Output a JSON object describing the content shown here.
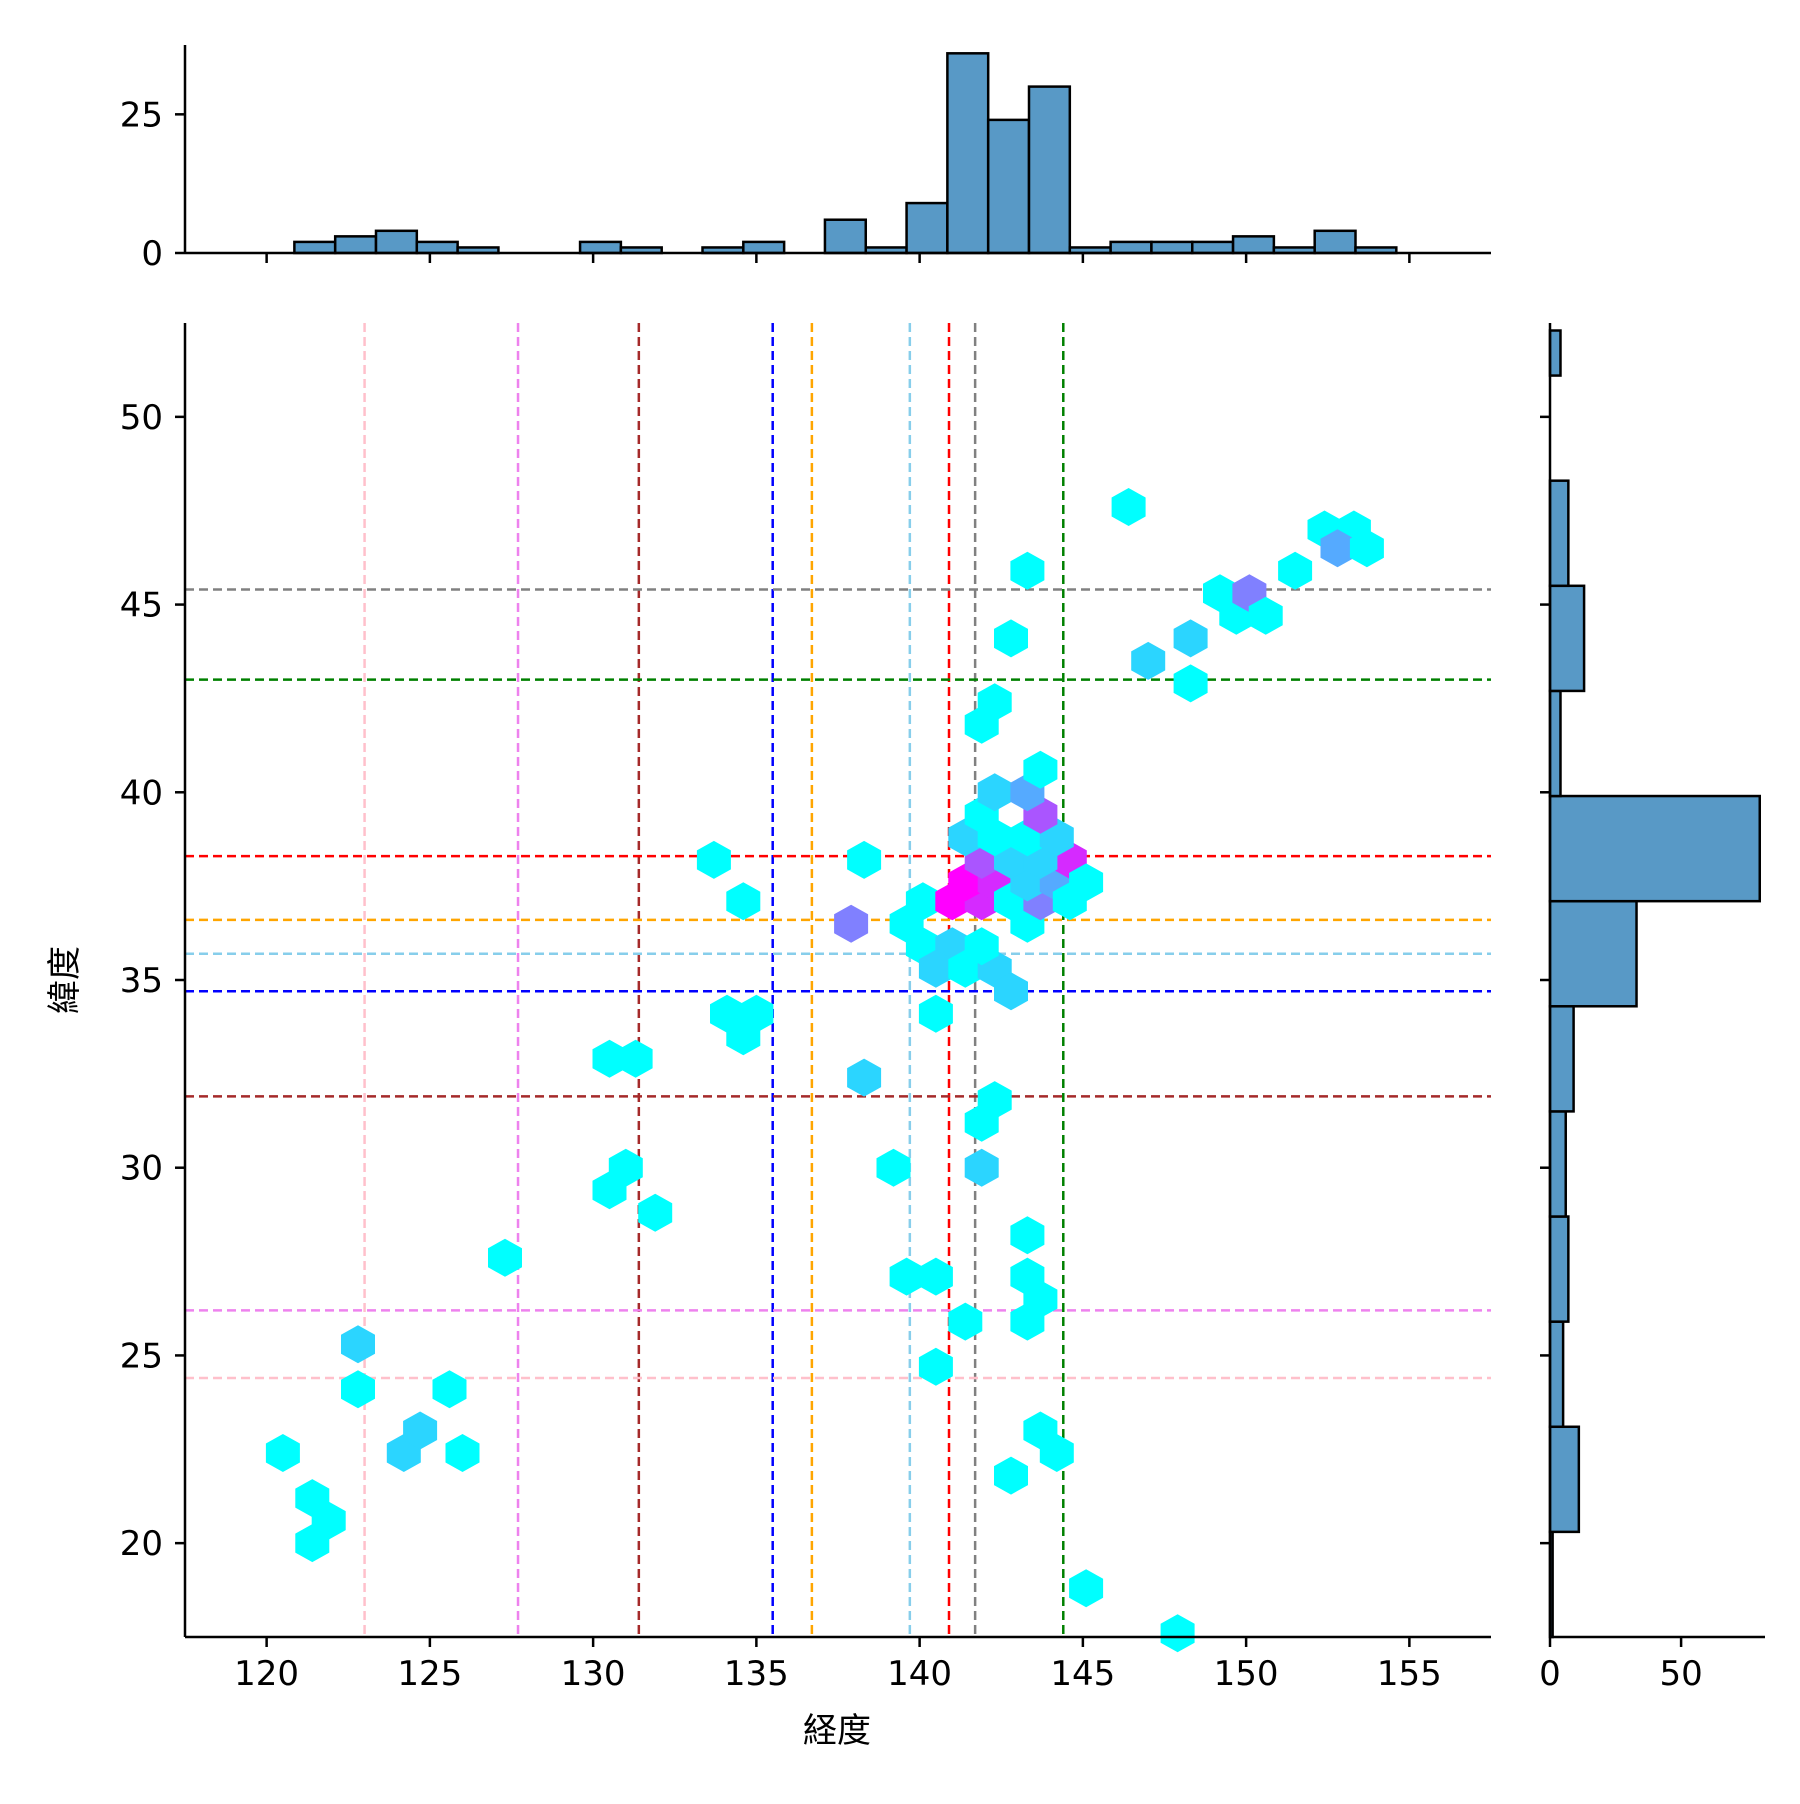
{
  "chart_data": {
    "type": "hexbin_joint",
    "xlabel": "経度",
    "ylabel": "緯度",
    "xlim": [
      117.5,
      157.5
    ],
    "ylim": [
      17.5,
      52.5
    ],
    "x_ticks": [
      120,
      125,
      130,
      135,
      140,
      145,
      150,
      155
    ],
    "y_ticks": [
      20,
      25,
      30,
      35,
      40,
      45,
      50
    ],
    "x_tick_labels": [
      "120",
      "125",
      "130",
      "135",
      "140",
      "145",
      "150",
      "155"
    ],
    "y_tick_labels": [
      "20",
      "25",
      "30",
      "35",
      "40",
      "45",
      "50"
    ],
    "colormap": {
      "low": "#00ffff",
      "mid": "#4aaefc",
      "high": "#ff00ff"
    },
    "hexbins": [
      {
        "x": 120.5,
        "y": 22.4,
        "count": 1
      },
      {
        "x": 121.4,
        "y": 21.2,
        "count": 1
      },
      {
        "x": 121.9,
        "y": 20.6,
        "count": 1
      },
      {
        "x": 121.4,
        "y": 20.0,
        "count": 1
      },
      {
        "x": 122.8,
        "y": 25.3,
        "count": 2
      },
      {
        "x": 122.8,
        "y": 24.1,
        "count": 1
      },
      {
        "x": 124.2,
        "y": 22.4,
        "count": 2
      },
      {
        "x": 124.7,
        "y": 23.0,
        "count": 2
      },
      {
        "x": 125.6,
        "y": 24.1,
        "count": 1
      },
      {
        "x": 126.0,
        "y": 22.4,
        "count": 1
      },
      {
        "x": 127.3,
        "y": 27.6,
        "count": 1
      },
      {
        "x": 130.5,
        "y": 32.9,
        "count": 1
      },
      {
        "x": 131.3,
        "y": 32.9,
        "count": 1
      },
      {
        "x": 130.5,
        "y": 29.4,
        "count": 1
      },
      {
        "x": 131.0,
        "y": 30.0,
        "count": 1
      },
      {
        "x": 131.9,
        "y": 28.8,
        "count": 1
      },
      {
        "x": 133.7,
        "y": 38.2,
        "count": 1
      },
      {
        "x": 134.6,
        "y": 37.1,
        "count": 1
      },
      {
        "x": 134.1,
        "y": 34.1,
        "count": 1
      },
      {
        "x": 135.0,
        "y": 34.1,
        "count": 1
      },
      {
        "x": 134.6,
        "y": 33.5,
        "count": 1
      },
      {
        "x": 138.3,
        "y": 38.2,
        "count": 1
      },
      {
        "x": 137.9,
        "y": 36.5,
        "count": 4
      },
      {
        "x": 138.3,
        "y": 32.4,
        "count": 2
      },
      {
        "x": 139.2,
        "y": 30.0,
        "count": 1
      },
      {
        "x": 139.6,
        "y": 27.1,
        "count": 1
      },
      {
        "x": 140.5,
        "y": 27.1,
        "count": 1
      },
      {
        "x": 140.5,
        "y": 24.7,
        "count": 1
      },
      {
        "x": 141.4,
        "y": 25.9,
        "count": 1
      },
      {
        "x": 140.5,
        "y": 34.1,
        "count": 1
      },
      {
        "x": 139.6,
        "y": 36.5,
        "count": 1
      },
      {
        "x": 140.1,
        "y": 37.1,
        "count": 1
      },
      {
        "x": 140.1,
        "y": 35.9,
        "count": 1
      },
      {
        "x": 141.0,
        "y": 35.9,
        "count": 2
      },
      {
        "x": 140.5,
        "y": 35.3,
        "count": 2
      },
      {
        "x": 141.4,
        "y": 35.3,
        "count": 1
      },
      {
        "x": 142.3,
        "y": 35.3,
        "count": 2
      },
      {
        "x": 142.8,
        "y": 34.7,
        "count": 2
      },
      {
        "x": 141.9,
        "y": 35.9,
        "count": 1
      },
      {
        "x": 141.0,
        "y": 37.1,
        "count": 7
      },
      {
        "x": 141.9,
        "y": 37.1,
        "count": 6
      },
      {
        "x": 141.4,
        "y": 37.6,
        "count": 7
      },
      {
        "x": 142.3,
        "y": 37.6,
        "count": 6
      },
      {
        "x": 141.9,
        "y": 38.2,
        "count": 5
      },
      {
        "x": 142.8,
        "y": 37.1,
        "count": 1
      },
      {
        "x": 143.3,
        "y": 36.5,
        "count": 1
      },
      {
        "x": 143.7,
        "y": 37.1,
        "count": 4
      },
      {
        "x": 143.3,
        "y": 37.6,
        "count": 2
      },
      {
        "x": 144.2,
        "y": 37.6,
        "count": 3
      },
      {
        "x": 144.6,
        "y": 38.2,
        "count": 6
      },
      {
        "x": 144.6,
        "y": 37.1,
        "count": 1
      },
      {
        "x": 145.1,
        "y": 37.6,
        "count": 1
      },
      {
        "x": 142.8,
        "y": 38.2,
        "count": 2
      },
      {
        "x": 143.7,
        "y": 38.2,
        "count": 2
      },
      {
        "x": 141.4,
        "y": 38.8,
        "count": 2
      },
      {
        "x": 142.3,
        "y": 38.8,
        "count": 1
      },
      {
        "x": 143.3,
        "y": 38.8,
        "count": 1
      },
      {
        "x": 144.2,
        "y": 38.8,
        "count": 2
      },
      {
        "x": 141.9,
        "y": 39.4,
        "count": 1
      },
      {
        "x": 143.7,
        "y": 39.4,
        "count": 5
      },
      {
        "x": 142.3,
        "y": 40.0,
        "count": 2
      },
      {
        "x": 143.3,
        "y": 40.0,
        "count": 3
      },
      {
        "x": 143.7,
        "y": 40.6,
        "count": 1
      },
      {
        "x": 141.9,
        "y": 41.8,
        "count": 1
      },
      {
        "x": 142.3,
        "y": 42.4,
        "count": 1
      },
      {
        "x": 142.8,
        "y": 44.1,
        "count": 1
      },
      {
        "x": 143.3,
        "y": 45.9,
        "count": 1
      },
      {
        "x": 146.4,
        "y": 47.6,
        "count": 1
      },
      {
        "x": 147.0,
        "y": 43.5,
        "count": 2
      },
      {
        "x": 148.3,
        "y": 44.1,
        "count": 2
      },
      {
        "x": 148.3,
        "y": 42.9,
        "count": 1
      },
      {
        "x": 149.2,
        "y": 45.3,
        "count": 1
      },
      {
        "x": 149.7,
        "y": 44.7,
        "count": 1
      },
      {
        "x": 150.1,
        "y": 45.3,
        "count": 4
      },
      {
        "x": 150.6,
        "y": 44.7,
        "count": 1
      },
      {
        "x": 151.5,
        "y": 45.9,
        "count": 1
      },
      {
        "x": 152.4,
        "y": 47.0,
        "count": 1
      },
      {
        "x": 153.3,
        "y": 47.0,
        "count": 1
      },
      {
        "x": 152.8,
        "y": 46.5,
        "count": 3
      },
      {
        "x": 153.7,
        "y": 46.5,
        "count": 1
      },
      {
        "x": 142.3,
        "y": 31.8,
        "count": 1
      },
      {
        "x": 141.9,
        "y": 31.2,
        "count": 1
      },
      {
        "x": 141.9,
        "y": 30.0,
        "count": 2
      },
      {
        "x": 143.3,
        "y": 28.2,
        "count": 1
      },
      {
        "x": 143.3,
        "y": 27.1,
        "count": 1
      },
      {
        "x": 143.7,
        "y": 26.5,
        "count": 1
      },
      {
        "x": 143.3,
        "y": 25.9,
        "count": 1
      },
      {
        "x": 143.7,
        "y": 23.0,
        "count": 1
      },
      {
        "x": 144.2,
        "y": 22.4,
        "count": 1
      },
      {
        "x": 142.8,
        "y": 21.8,
        "count": 1
      },
      {
        "x": 145.1,
        "y": 18.8,
        "count": 1
      },
      {
        "x": 147.9,
        "y": 17.6,
        "count": 1
      }
    ],
    "hexbin_max_count": 7,
    "vertical_lines": [
      {
        "x": 123.0,
        "color": "#ffc0cb"
      },
      {
        "x": 127.7,
        "color": "#ee82ee"
      },
      {
        "x": 131.4,
        "color": "#a52a2a"
      },
      {
        "x": 135.5,
        "color": "#0000ff"
      },
      {
        "x": 136.7,
        "color": "#ffa500"
      },
      {
        "x": 139.7,
        "color": "#87ceeb"
      },
      {
        "x": 140.9,
        "color": "#ff0000"
      },
      {
        "x": 141.7,
        "color": "#808080"
      },
      {
        "x": 144.4,
        "color": "#008000"
      }
    ],
    "horizontal_lines": [
      {
        "y": 24.4,
        "color": "#ffc0cb"
      },
      {
        "y": 26.2,
        "color": "#ee82ee"
      },
      {
        "y": 31.9,
        "color": "#a52a2a"
      },
      {
        "y": 34.7,
        "color": "#0000ff"
      },
      {
        "y": 35.7,
        "color": "#87ceeb"
      },
      {
        "y": 36.6,
        "color": "#ffa500"
      },
      {
        "y": 38.3,
        "color": "#ff0000"
      },
      {
        "y": 43.0,
        "color": "#008000"
      },
      {
        "y": 45.4,
        "color": "#808080"
      }
    ],
    "top_histogram": {
      "ylim": [
        0,
        37.5
      ],
      "y_ticks": [
        0,
        25
      ],
      "y_tick_labels": [
        "0",
        "25"
      ],
      "bars": [
        {
          "x0": 120.85,
          "x1": 122.1,
          "count": 2
        },
        {
          "x0": 122.1,
          "x1": 123.35,
          "count": 3
        },
        {
          "x0": 123.35,
          "x1": 124.6,
          "count": 4
        },
        {
          "x0": 124.6,
          "x1": 125.85,
          "count": 2
        },
        {
          "x0": 125.85,
          "x1": 127.1,
          "count": 1
        },
        {
          "x0": 127.1,
          "x1": 128.35,
          "count": 0
        },
        {
          "x0": 128.35,
          "x1": 129.6,
          "count": 0
        },
        {
          "x0": 129.6,
          "x1": 130.85,
          "count": 2
        },
        {
          "x0": 130.85,
          "x1": 132.1,
          "count": 1
        },
        {
          "x0": 132.1,
          "x1": 133.35,
          "count": 0
        },
        {
          "x0": 133.35,
          "x1": 134.6,
          "count": 1
        },
        {
          "x0": 134.6,
          "x1": 135.85,
          "count": 2
        },
        {
          "x0": 135.85,
          "x1": 137.1,
          "count": 0
        },
        {
          "x0": 137.1,
          "x1": 138.35,
          "count": 6
        },
        {
          "x0": 138.35,
          "x1": 139.6,
          "count": 1
        },
        {
          "x0": 139.6,
          "x1": 140.85,
          "count": 9
        },
        {
          "x0": 140.85,
          "x1": 142.1,
          "count": 36
        },
        {
          "x0": 142.1,
          "x1": 143.35,
          "count": 24
        },
        {
          "x0": 143.35,
          "x1": 144.6,
          "count": 30
        },
        {
          "x0": 144.6,
          "x1": 145.85,
          "count": 1
        },
        {
          "x0": 145.85,
          "x1": 147.1,
          "count": 2
        },
        {
          "x0": 147.1,
          "x1": 148.35,
          "count": 2
        },
        {
          "x0": 148.35,
          "x1": 149.6,
          "count": 2
        },
        {
          "x0": 149.6,
          "x1": 150.85,
          "count": 3
        },
        {
          "x0": 150.85,
          "x1": 152.1,
          "count": 1
        },
        {
          "x0": 152.1,
          "x1": 153.35,
          "count": 4
        },
        {
          "x0": 153.35,
          "x1": 154.6,
          "count": 1
        }
      ]
    },
    "right_histogram": {
      "xlim": [
        0,
        82
      ],
      "x_ticks": [
        0,
        50
      ],
      "x_tick_labels": [
        "0",
        "50"
      ],
      "bars": [
        {
          "y0": 17.5,
          "y1": 20.3,
          "count": 1
        },
        {
          "y0": 20.3,
          "y1": 23.1,
          "count": 11
        },
        {
          "y0": 23.1,
          "y1": 25.9,
          "count": 5
        },
        {
          "y0": 25.9,
          "y1": 28.7,
          "count": 7
        },
        {
          "y0": 28.7,
          "y1": 31.5,
          "count": 6
        },
        {
          "y0": 31.5,
          "y1": 34.3,
          "count": 9
        },
        {
          "y0": 34.3,
          "y1": 37.1,
          "count": 33
        },
        {
          "y0": 37.1,
          "y1": 39.9,
          "count": 80
        },
        {
          "y0": 39.9,
          "y1": 42.7,
          "count": 4
        },
        {
          "y0": 42.7,
          "y1": 45.5,
          "count": 13
        },
        {
          "y0": 45.5,
          "y1": 48.3,
          "count": 7
        },
        {
          "y0": 48.3,
          "y1": 51.1,
          "count": 0
        },
        {
          "y0": 51.1,
          "y1": 52.3,
          "count": 4
        }
      ]
    },
    "bar_fill": "#5899c6",
    "bar_edge": "#000000"
  }
}
